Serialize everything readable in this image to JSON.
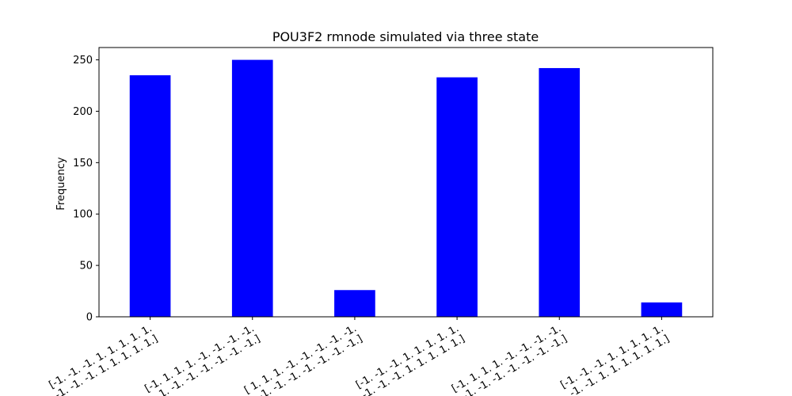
{
  "chart_data": {
    "type": "bar",
    "title": "POU3F2 rmnode simulated via three state",
    "xlabel": "",
    "ylabel": "Frequency",
    "ylim": [
      0,
      262
    ],
    "yticks": [
      0,
      50,
      100,
      150,
      200,
      250
    ],
    "grid": false,
    "categories": [
      [
        "[-1. -1. -1. 1. 1. 1. 1. 1.",
        "-1. -1. -1. -1. 1. 1. 1. 1. 1.]"
      ],
      [
        "[-1. 1. 1. 1. -1. -1. -1. -1.",
        "1. 1. -1. -1. -1. -1. -1. -1.]"
      ],
      [
        "[ 1. 1. 1. -1. -1. -1. -1. -1.",
        "1. -1. -1. -1. -1. -1. -1. -1.]"
      ],
      [
        "[-1. -1. -1. 1. 1. 1. 1. 1.",
        "-1. -1. -1. 1. 1. 1. 1. 1.]"
      ],
      [
        "[-1. 1. 1. 1. -1. -1. -1. -1.",
        "1. -1. -1. -1. -1. -1. -1. -1.]"
      ],
      [
        "[-1. -1. -1. 1. 1. 1. 1. 1.",
        "-1. -1. 1. 1. 1. 1. 1. 1.]"
      ]
    ],
    "values": [
      235,
      250,
      26,
      233,
      242,
      14
    ],
    "bar_color": "#0000ff"
  }
}
